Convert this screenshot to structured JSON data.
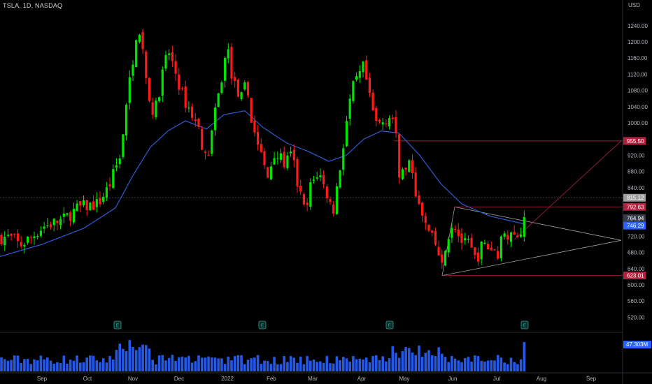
{
  "header": {
    "title": "TSLA, 1D, NASDAQ",
    "currency": "USD"
  },
  "chart_data": {
    "type": "candlestick",
    "symbol": "TSLA",
    "interval": "1D",
    "exchange": "NASDAQ",
    "y_axis": {
      "ticks": [
        520,
        560,
        600,
        640,
        680,
        720,
        840,
        880,
        920,
        1000,
        1040,
        1080,
        1120,
        1160,
        1200,
        1240
      ],
      "range": [
        500,
        1280
      ]
    },
    "x_axis": {
      "labels": [
        "Sep",
        "Oct",
        "Nov",
        "Dec",
        "2022",
        "Feb",
        "Mar",
        "Apr",
        "May",
        "Jun",
        "Jul",
        "Aug",
        "Sep"
      ]
    },
    "price_tags": [
      {
        "value": 955.5,
        "label": "955.50",
        "color": "#b2223f"
      },
      {
        "value": 815.12,
        "label": "815.12",
        "color": "#9e9e9e"
      },
      {
        "value": 792.63,
        "label": "792.63",
        "color": "#b2223f"
      },
      {
        "value": 764.94,
        "label": "764.94",
        "color": "#363a45"
      },
      {
        "value": 746.29,
        "label": "746.29",
        "color": "#2962ff"
      },
      {
        "value": 623.01,
        "label": "623.01",
        "color": "#b2223f"
      }
    ],
    "volume_tag": {
      "label": "47.303M",
      "color": "#2962ff"
    },
    "earnings_marker": "E",
    "colors": {
      "up": "#00e600",
      "down": "#ff1a1a",
      "ma": "#2f5bd6",
      "volume": "#2962ff",
      "background": "#000000"
    },
    "anchors": [
      {
        "x": 0,
        "p": 717
      },
      {
        "x": 10,
        "p": 718
      },
      {
        "x": 20,
        "p": 712
      },
      {
        "x": 28,
        "p": 697
      },
      {
        "x": 45,
        "p": 718
      },
      {
        "x": 62,
        "p": 745
      },
      {
        "x": 90,
        "p": 760
      },
      {
        "x": 112,
        "p": 790
      },
      {
        "x": 140,
        "p": 800
      },
      {
        "x": 155,
        "p": 840
      },
      {
        "x": 170,
        "p": 910
      },
      {
        "x": 178,
        "p": 1000
      },
      {
        "x": 185,
        "p": 1100
      },
      {
        "x": 195,
        "p": 1220
      },
      {
        "x": 205,
        "p": 1180
      },
      {
        "x": 213,
        "p": 1040
      },
      {
        "x": 222,
        "p": 1030
      },
      {
        "x": 232,
        "p": 1120
      },
      {
        "x": 240,
        "p": 1180
      },
      {
        "x": 250,
        "p": 1130
      },
      {
        "x": 262,
        "p": 1060
      },
      {
        "x": 272,
        "p": 1030
      },
      {
        "x": 285,
        "p": 980
      },
      {
        "x": 295,
        "p": 900
      },
      {
        "x": 305,
        "p": 1000
      },
      {
        "x": 315,
        "p": 1090
      },
      {
        "x": 325,
        "p": 1190
      },
      {
        "x": 333,
        "p": 1100
      },
      {
        "x": 345,
        "p": 1060
      },
      {
        "x": 352,
        "p": 1100
      },
      {
        "x": 360,
        "p": 1000
      },
      {
        "x": 372,
        "p": 930
      },
      {
        "x": 382,
        "p": 860
      },
      {
        "x": 392,
        "p": 930
      },
      {
        "x": 405,
        "p": 900
      },
      {
        "x": 418,
        "p": 920
      },
      {
        "x": 425,
        "p": 850
      },
      {
        "x": 437,
        "p": 770
      },
      {
        "x": 443,
        "p": 840
      },
      {
        "x": 455,
        "p": 880
      },
      {
        "x": 468,
        "p": 820
      },
      {
        "x": 476,
        "p": 780
      },
      {
        "x": 487,
        "p": 900
      },
      {
        "x": 495,
        "p": 1000
      },
      {
        "x": 503,
        "p": 1080
      },
      {
        "x": 512,
        "p": 1110
      },
      {
        "x": 520,
        "p": 1140
      },
      {
        "x": 528,
        "p": 1060
      },
      {
        "x": 537,
        "p": 1000
      },
      {
        "x": 545,
        "p": 1000
      },
      {
        "x": 557,
        "p": 1020
      },
      {
        "x": 565,
        "p": 1000
      },
      {
        "x": 570,
        "p": 880
      },
      {
        "x": 580,
        "p": 880
      },
      {
        "x": 588,
        "p": 900
      },
      {
        "x": 597,
        "p": 800
      },
      {
        "x": 605,
        "p": 760
      },
      {
        "x": 615,
        "p": 720
      },
      {
        "x": 625,
        "p": 690
      },
      {
        "x": 632,
        "p": 640
      },
      {
        "x": 640,
        "p": 720
      },
      {
        "x": 648,
        "p": 760
      },
      {
        "x": 656,
        "p": 720
      },
      {
        "x": 663,
        "p": 700
      },
      {
        "x": 670,
        "p": 700
      },
      {
        "x": 680,
        "p": 660
      },
      {
        "x": 690,
        "p": 700
      },
      {
        "x": 700,
        "p": 690
      },
      {
        "x": 712,
        "p": 680
      },
      {
        "x": 722,
        "p": 740
      },
      {
        "x": 732,
        "p": 710
      },
      {
        "x": 740,
        "p": 730
      },
      {
        "x": 748,
        "p": 740
      },
      {
        "x": 752,
        "p": 810
      }
    ],
    "ma_anchors": [
      {
        "x": 0,
        "p": 670
      },
      {
        "x": 60,
        "p": 700
      },
      {
        "x": 120,
        "p": 740
      },
      {
        "x": 165,
        "p": 790
      },
      {
        "x": 190,
        "p": 870
      },
      {
        "x": 215,
        "p": 940
      },
      {
        "x": 240,
        "p": 980
      },
      {
        "x": 265,
        "p": 1005
      },
      {
        "x": 295,
        "p": 985
      },
      {
        "x": 320,
        "p": 1020
      },
      {
        "x": 350,
        "p": 1030
      },
      {
        "x": 375,
        "p": 990
      },
      {
        "x": 410,
        "p": 950
      },
      {
        "x": 440,
        "p": 930
      },
      {
        "x": 470,
        "p": 905
      },
      {
        "x": 495,
        "p": 920
      },
      {
        "x": 520,
        "p": 960
      },
      {
        "x": 545,
        "p": 980
      },
      {
        "x": 570,
        "p": 975
      },
      {
        "x": 600,
        "p": 920
      },
      {
        "x": 630,
        "p": 850
      },
      {
        "x": 660,
        "p": 800
      },
      {
        "x": 700,
        "p": 770
      },
      {
        "x": 750,
        "p": 750
      }
    ],
    "earnings_x": [
      168,
      375,
      557,
      750
    ],
    "drawings": [
      {
        "kind": "triangle",
        "points": [
          [
            650,
            792.63
          ],
          [
            632,
            623.01
          ],
          [
            888,
            710
          ]
        ],
        "color": "#9e9e9e"
      },
      {
        "kind": "hline",
        "x1": 650,
        "x2": 890,
        "value": 792.63,
        "color": "#b2223f"
      },
      {
        "kind": "hline",
        "x1": 632,
        "x2": 890,
        "value": 623.01,
        "color": "#b2223f"
      },
      {
        "kind": "hline",
        "x1": 563,
        "x2": 890,
        "value": 955.5,
        "color": "#b2223f"
      },
      {
        "kind": "segment",
        "p1": [
          735,
          712
        ],
        "p2": [
          888,
          955.5
        ],
        "color": "#b2223f"
      },
      {
        "kind": "hline",
        "x1": 0,
        "x2": 890,
        "value": 815.12,
        "color": "#555555",
        "dashed": true
      }
    ]
  }
}
